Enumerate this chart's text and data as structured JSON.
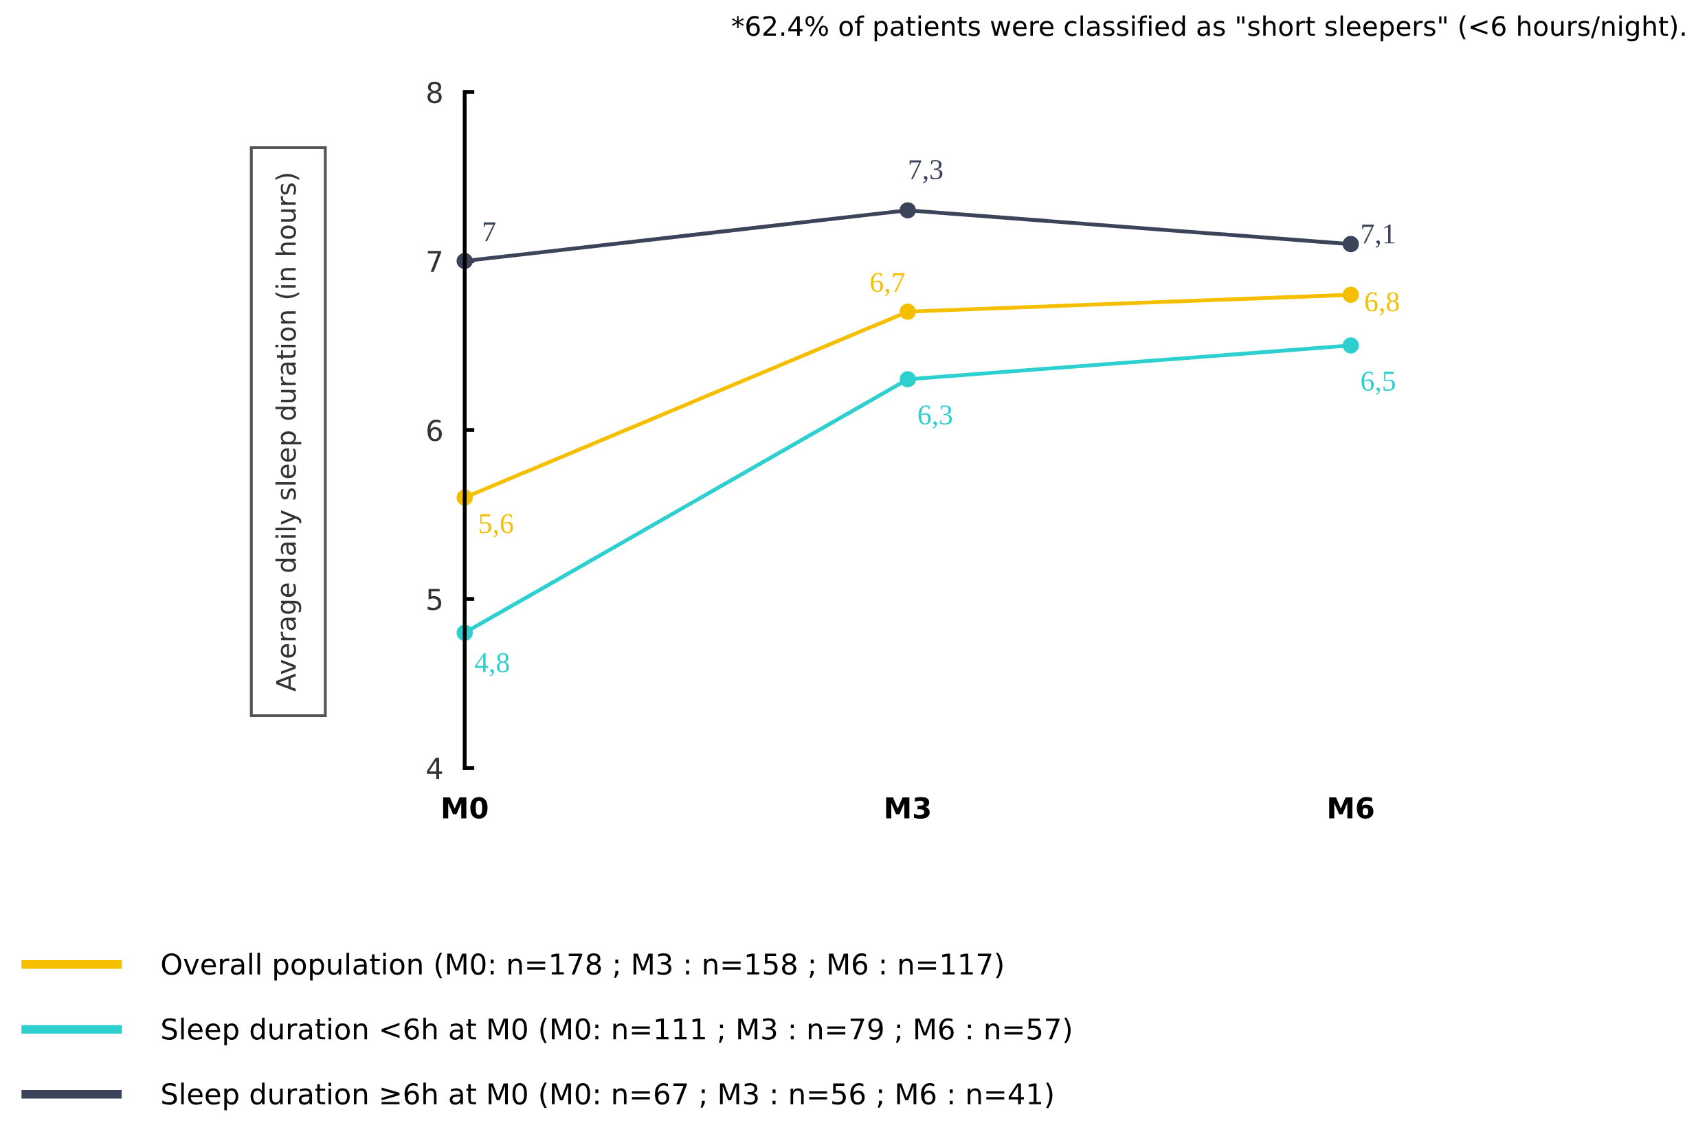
{
  "chart_data": {
    "type": "line",
    "ylabel": "Average daily sleep duration (in hours)",
    "categories": [
      "M0",
      "M3",
      "M6"
    ],
    "ylim": [
      4,
      8
    ],
    "yticks": [
      4,
      5,
      6,
      7,
      8
    ],
    "marker": "circle",
    "line_style": "solid",
    "grid": false,
    "legend": "bottom",
    "annotations": [
      "*62.4% of patients were classified as \"short sleepers\" (<6 hours/night)."
    ],
    "series": [
      {
        "name": "Overall population (M0: n=178 ; M3 : n=158 ; M6 : n=117)",
        "color": "#f5bf00",
        "values": [
          5.6,
          6.7,
          6.8
        ],
        "value_labels": [
          "5,6",
          "6,7",
          "6,8"
        ]
      },
      {
        "name": "Sleep duration <6h at M0 (M0: n=111 ; M3 : n=79 ; M6 : n=57)",
        "color": "#2ecfcf",
        "values": [
          4.8,
          6.3,
          6.5
        ],
        "value_labels": [
          "4,8",
          "6,3",
          "6,5"
        ]
      },
      {
        "name": "Sleep duration ≥6h at M0 (M0: n=67 ; M3 : n=56 ; M6 : n=41)",
        "color": "#3b4459",
        "values": [
          7,
          7.3,
          7.1
        ],
        "value_labels": [
          "7",
          "7,3",
          "7,1"
        ]
      }
    ]
  }
}
